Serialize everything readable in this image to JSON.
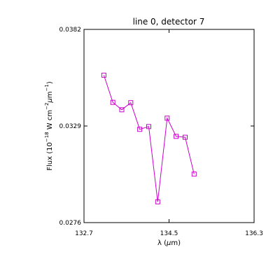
{
  "chart_data": {
    "type": "line",
    "title": "line 0, detector 7",
    "xlabel": {
      "pre": "λ (",
      "greek": "μ",
      "post": "m)"
    },
    "ylabel": {
      "a": "Flux (10",
      "a_sup": "−18",
      "b": " W cm",
      "b_sup": "−2",
      "greek": "μ",
      "c": "m",
      "c_sup": "−1",
      "d": ")"
    },
    "xlim": [
      132.7,
      136.3
    ],
    "ylim": [
      0.0276,
      0.0382
    ],
    "x_ticks": [
      "132.7",
      "134.5",
      "136.3"
    ],
    "y_ticks": [
      "0.0276",
      "0.0329",
      "0.0382"
    ],
    "grid": false,
    "series": [
      {
        "color": "#cc00cc",
        "marker": "square",
        "x": [
          133.12,
          133.31,
          133.5,
          133.69,
          133.88,
          134.07,
          134.26,
          134.46,
          134.65,
          134.84,
          135.03
        ],
        "y": [
          0.03569,
          0.0342,
          0.03379,
          0.03418,
          0.03272,
          0.03287,
          0.02874,
          0.03333,
          0.03233,
          0.03228,
          0.03026
        ]
      }
    ]
  }
}
